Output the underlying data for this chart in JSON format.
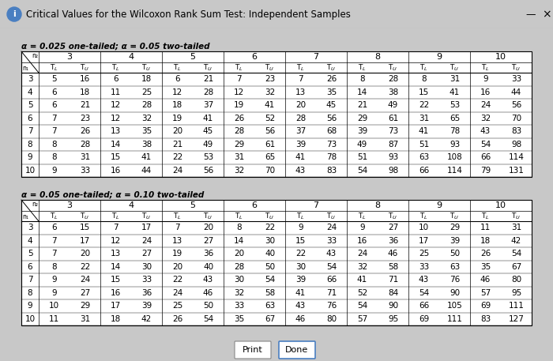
{
  "title": "Critical Values for the Wilcoxon Rank Sum Test: Independent Samples",
  "table1_header": "α = 0.025 one-tailed; α = 0.05 two-tailed",
  "table2_header": "α = 0.05 one-tailed; α = 0.10 two-tailed",
  "col_groups": [
    3,
    4,
    5,
    6,
    7,
    8,
    9,
    10
  ],
  "row_labels": [
    3,
    4,
    5,
    6,
    7,
    8,
    9,
    10
  ],
  "table1": [
    [
      5,
      16,
      6,
      18,
      6,
      21,
      7,
      23,
      7,
      26,
      8,
      28,
      8,
      31,
      9,
      33
    ],
    [
      6,
      18,
      11,
      25,
      12,
      28,
      12,
      32,
      13,
      35,
      14,
      38,
      15,
      41,
      16,
      44
    ],
    [
      6,
      21,
      12,
      28,
      18,
      37,
      19,
      41,
      20,
      45,
      21,
      49,
      22,
      53,
      24,
      56
    ],
    [
      7,
      23,
      12,
      32,
      19,
      41,
      26,
      52,
      28,
      56,
      29,
      61,
      31,
      65,
      32,
      70
    ],
    [
      7,
      26,
      13,
      35,
      20,
      45,
      28,
      56,
      37,
      68,
      39,
      73,
      41,
      78,
      43,
      83
    ],
    [
      8,
      28,
      14,
      38,
      21,
      49,
      29,
      61,
      39,
      73,
      49,
      87,
      51,
      93,
      54,
      98
    ],
    [
      8,
      31,
      15,
      41,
      22,
      53,
      31,
      65,
      41,
      78,
      51,
      93,
      63,
      108,
      66,
      114
    ],
    [
      9,
      33,
      16,
      44,
      24,
      56,
      32,
      70,
      43,
      83,
      54,
      98,
      66,
      114,
      79,
      131
    ]
  ],
  "table2": [
    [
      6,
      15,
      7,
      17,
      7,
      20,
      8,
      22,
      9,
      24,
      9,
      27,
      10,
      29,
      11,
      31
    ],
    [
      7,
      17,
      12,
      24,
      13,
      27,
      14,
      30,
      15,
      33,
      16,
      36,
      17,
      39,
      18,
      42
    ],
    [
      7,
      20,
      13,
      27,
      19,
      36,
      20,
      40,
      22,
      43,
      24,
      46,
      25,
      50,
      26,
      54
    ],
    [
      8,
      22,
      14,
      30,
      20,
      40,
      28,
      50,
      30,
      54,
      32,
      58,
      33,
      63,
      35,
      67
    ],
    [
      9,
      24,
      15,
      33,
      22,
      43,
      30,
      54,
      39,
      66,
      41,
      71,
      43,
      76,
      46,
      80
    ],
    [
      9,
      27,
      16,
      36,
      24,
      46,
      32,
      58,
      41,
      71,
      52,
      84,
      54,
      90,
      57,
      95
    ],
    [
      10,
      29,
      17,
      39,
      25,
      50,
      33,
      63,
      43,
      76,
      54,
      90,
      66,
      105,
      69,
      111
    ],
    [
      11,
      31,
      18,
      42,
      26,
      54,
      35,
      67,
      46,
      80,
      57,
      95,
      69,
      111,
      83,
      127
    ]
  ],
  "window_bg": "#c8c8c8",
  "titlebar_bg": "#e8e8e8",
  "content_bg": "#f5f5f5",
  "table_bg": "#ffffff",
  "border_color": "#888888",
  "line_color": "#999999"
}
